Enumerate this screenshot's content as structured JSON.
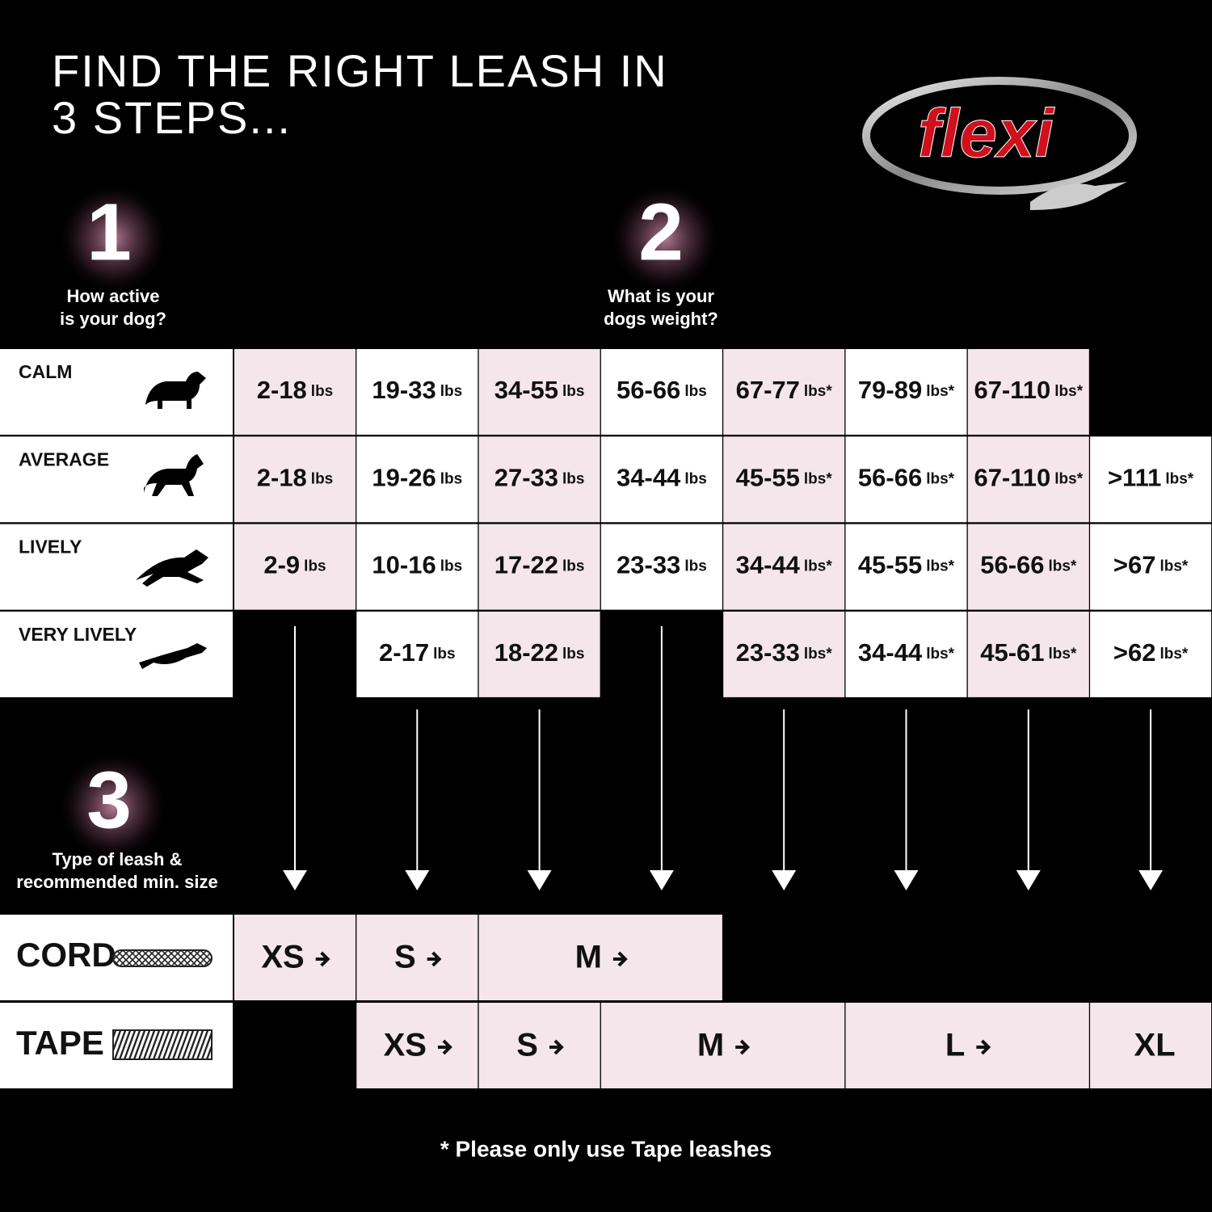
{
  "header": {
    "title_lines": [
      "FIND THE RIGHT LEASH IN",
      "3 STEPS..."
    ],
    "logo": "flexi"
  },
  "steps": [
    {
      "number": "1",
      "label_lines": [
        "How active",
        "is your dog?"
      ]
    },
    {
      "number": "2",
      "label_lines": [
        "What is your",
        "dogs weight?"
      ]
    },
    {
      "number": "3",
      "label_lines": [
        "Type of leash &",
        "recommended min. size"
      ]
    }
  ],
  "activity_table": {
    "rows": [
      {
        "level": "CALM",
        "cells": [
          {
            "range": "2-18",
            "unit": "lbs"
          },
          {
            "range": "19-33",
            "unit": "lbs"
          },
          {
            "range": "34-55",
            "unit": "lbs"
          },
          {
            "range": "56-66",
            "unit": "lbs"
          },
          {
            "range": "67-77",
            "unit": "lbs*"
          },
          {
            "range": "79-89",
            "unit": "lbs*"
          },
          {
            "range": "67-110",
            "unit": "lbs*"
          },
          null
        ]
      },
      {
        "level": "AVERAGE",
        "cells": [
          {
            "range": "2-18",
            "unit": "lbs"
          },
          {
            "range": "19-26",
            "unit": "lbs"
          },
          {
            "range": "27-33",
            "unit": "lbs"
          },
          {
            "range": "34-44",
            "unit": "lbs"
          },
          {
            "range": "45-55",
            "unit": "lbs*"
          },
          {
            "range": "56-66",
            "unit": "lbs*"
          },
          {
            "range": "67-110",
            "unit": "lbs*"
          },
          {
            "range": ">111",
            "unit": "lbs*"
          }
        ]
      },
      {
        "level": "LIVELY",
        "cells": [
          {
            "range": "2-9",
            "unit": "lbs"
          },
          {
            "range": "10-16",
            "unit": "lbs"
          },
          {
            "range": "17-22",
            "unit": "lbs"
          },
          {
            "range": "23-33",
            "unit": "lbs"
          },
          {
            "range": "34-44",
            "unit": "lbs*"
          },
          {
            "range": "45-55",
            "unit": "lbs*"
          },
          {
            "range": "56-66",
            "unit": "lbs*"
          },
          {
            "range": ">67",
            "unit": "lbs*"
          }
        ]
      },
      {
        "level": "VERY LIVELY",
        "cells": [
          null,
          {
            "range": "2-17",
            "unit": "lbs"
          },
          {
            "range": "18-22",
            "unit": "lbs"
          },
          null,
          {
            "range": "23-33",
            "unit": "lbs*"
          },
          {
            "range": "34-44",
            "unit": "lbs*"
          },
          {
            "range": "45-61",
            "unit": "lbs*"
          },
          {
            "range": ">62",
            "unit": "lbs*"
          }
        ]
      }
    ]
  },
  "leash_table": {
    "rows": [
      {
        "type": "CORD",
        "sizes": [
          "XS",
          "S",
          "M"
        ]
      },
      {
        "type": "TAPE",
        "sizes": [
          "XS",
          "S",
          "M",
          "L",
          "XL"
        ]
      }
    ]
  },
  "footnote": "* Please only use Tape leashes"
}
